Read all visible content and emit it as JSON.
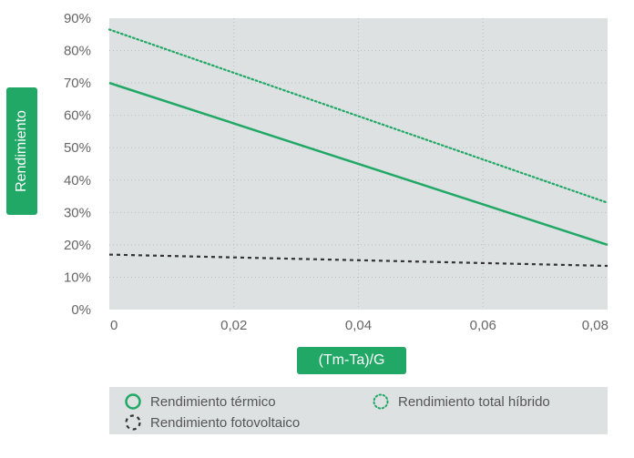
{
  "chart_data": {
    "type": "line",
    "x_ticks": [
      "0",
      "0,02",
      "0,04",
      "0,06",
      "0,08"
    ],
    "y_ticks": [
      "0%",
      "10%",
      "20%",
      "30%",
      "40%",
      "50%",
      "60%",
      "70%",
      "80%",
      "90%"
    ],
    "xlim": [
      0,
      0.08
    ],
    "ylim": [
      0,
      90
    ],
    "xlabel": "(Tm-Ta)/G",
    "ylabel": "Rendimiento",
    "grid": true,
    "legend_position": "bottom",
    "series": [
      {
        "name": "Rendimiento térmico",
        "x": [
          0,
          0.08
        ],
        "y": [
          70,
          20
        ],
        "color": "#22a866",
        "style": "solid"
      },
      {
        "name": "Rendimiento total híbrido",
        "x": [
          0,
          0.08
        ],
        "y": [
          86.5,
          33
        ],
        "color": "#22a866",
        "style": "dotted"
      },
      {
        "name": "Rendimiento fotovoltaico",
        "x": [
          0,
          0.08
        ],
        "y": [
          17,
          13.5
        ],
        "color": "#333333",
        "style": "dashed"
      }
    ]
  },
  "colors": {
    "plot_background": "#dde1e2",
    "accent": "#22a866",
    "legend_background": "#dde1e2"
  }
}
